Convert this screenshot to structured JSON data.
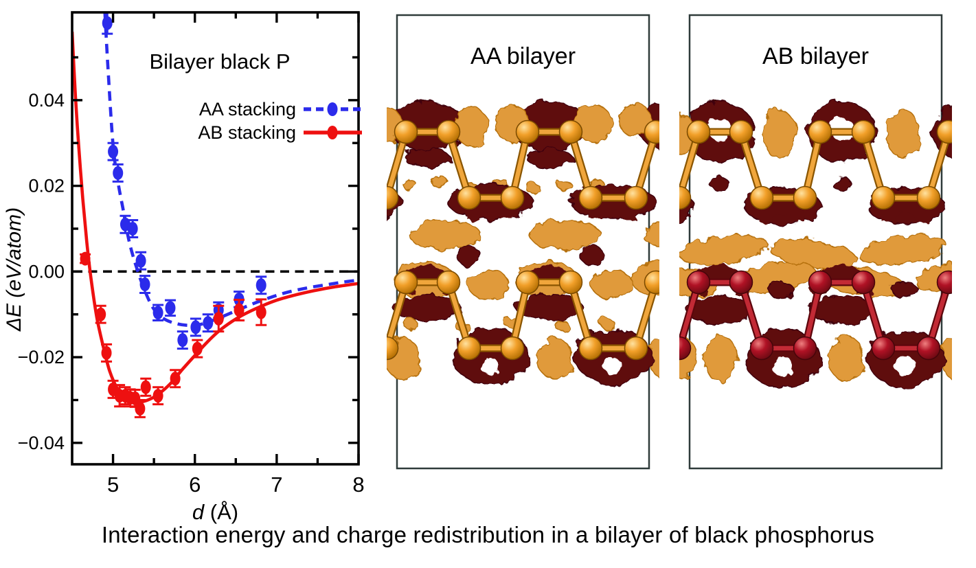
{
  "figure": {
    "caption": "Interaction energy and charge redistribution in a bilayer of black phosphorus"
  },
  "chart": {
    "title": "Bilayer black P",
    "x_axis": {
      "label_symbol": "d",
      "label_unit": " (Å)",
      "tick_labels": [
        "5",
        "6",
        "7",
        "8"
      ]
    },
    "y_axis": {
      "label_symbol": "ΔE",
      "label_unit": " (eV/atom)",
      "tick_labels": [
        "0.04",
        "0.02",
        "0.00",
        "−0.02",
        "−0.04"
      ]
    }
  },
  "chart_data": {
    "type": "scatter",
    "title": "Bilayer black P",
    "xlabel": "d (Å)",
    "ylabel": "ΔE (eV/atom)",
    "xlim": [
      4.5,
      8.0
    ],
    "ylim": [
      -0.045,
      0.0605
    ],
    "x_major_ticks": [
      5,
      6,
      7,
      8
    ],
    "x_minor_ticks": [
      5.5,
      6.5,
      7.5
    ],
    "y_major_ticks": [
      0.04,
      0.02,
      0.0,
      -0.02,
      -0.04
    ],
    "y_minor_ticks": [
      0.05,
      0.03,
      0.01,
      -0.01,
      -0.03
    ],
    "zero_line_y": 0.0,
    "grid": false,
    "legend_position": "upper-right-inside",
    "series": [
      {
        "name": "AA stacking",
        "color": "#2b2beb",
        "line_style": "dashed",
        "marker": "ellipse",
        "points": [
          {
            "x": 4.93,
            "y": 0.058,
            "err": 0.0025
          },
          {
            "x": 5.0,
            "y": 0.028,
            "err": 0.002
          },
          {
            "x": 5.06,
            "y": 0.023,
            "err": 0.002
          },
          {
            "x": 5.15,
            "y": 0.011,
            "err": 0.002
          },
          {
            "x": 5.24,
            "y": 0.01,
            "err": 0.002
          },
          {
            "x": 5.34,
            "y": 0.0025,
            "err": 0.002
          },
          {
            "x": 5.39,
            "y": -0.003,
            "err": 0.002
          },
          {
            "x": 5.55,
            "y": -0.0096,
            "err": 0.0018
          },
          {
            "x": 5.7,
            "y": -0.0085,
            "err": 0.0018
          },
          {
            "x": 5.85,
            "y": -0.016,
            "err": 0.002
          },
          {
            "x": 6.01,
            "y": -0.013,
            "err": 0.002
          },
          {
            "x": 6.16,
            "y": -0.012,
            "err": 0.002
          },
          {
            "x": 6.29,
            "y": -0.009,
            "err": 0.0018
          },
          {
            "x": 6.54,
            "y": -0.0065,
            "err": 0.0018
          },
          {
            "x": 6.81,
            "y": -0.0032,
            "err": 0.002
          }
        ],
        "fit_curve": [
          [
            4.9,
            0.0605
          ],
          [
            4.94,
            0.047
          ],
          [
            5.0,
            0.0295
          ],
          [
            5.06,
            0.021
          ],
          [
            5.12,
            0.0148
          ],
          [
            5.2,
            0.0068
          ],
          [
            5.3,
            0.0002
          ],
          [
            5.4,
            -0.005
          ],
          [
            5.5,
            -0.0088
          ],
          [
            5.62,
            -0.011
          ],
          [
            5.78,
            -0.0122
          ],
          [
            5.95,
            -0.0126
          ],
          [
            6.1,
            -0.0122
          ],
          [
            6.3,
            -0.0108
          ],
          [
            6.5,
            -0.0092
          ],
          [
            6.7,
            -0.0076
          ],
          [
            6.9,
            -0.0062
          ],
          [
            7.1,
            -0.005
          ],
          [
            7.35,
            -0.0039
          ],
          [
            7.6,
            -0.0031
          ],
          [
            7.8,
            -0.0025
          ],
          [
            8.0,
            -0.002
          ]
        ]
      },
      {
        "name": "AB stacking",
        "color": "#ee1010",
        "line_style": "solid",
        "marker": "ellipse",
        "points": [
          {
            "x": 4.66,
            "y": 0.003,
            "err": 0.001
          },
          {
            "x": 4.85,
            "y": -0.01,
            "err": 0.002
          },
          {
            "x": 4.92,
            "y": -0.019,
            "err": 0.002
          },
          {
            "x": 5.0,
            "y": -0.0275,
            "err": 0.002
          },
          {
            "x": 5.08,
            "y": -0.029,
            "err": 0.0025
          },
          {
            "x": 5.15,
            "y": -0.029,
            "err": 0.002
          },
          {
            "x": 5.21,
            "y": -0.0295,
            "err": 0.002
          },
          {
            "x": 5.27,
            "y": -0.0296,
            "err": 0.002
          },
          {
            "x": 5.33,
            "y": -0.032,
            "err": 0.002
          },
          {
            "x": 5.4,
            "y": -0.027,
            "err": 0.002
          },
          {
            "x": 5.55,
            "y": -0.029,
            "err": 0.002
          },
          {
            "x": 5.76,
            "y": -0.025,
            "err": 0.002
          },
          {
            "x": 6.03,
            "y": -0.018,
            "err": 0.002
          },
          {
            "x": 6.29,
            "y": -0.011,
            "err": 0.003
          },
          {
            "x": 6.54,
            "y": -0.009,
            "err": 0.0024
          },
          {
            "x": 6.81,
            "y": -0.0095,
            "err": 0.003
          }
        ],
        "fit_curve": [
          [
            4.5,
            0.056
          ],
          [
            4.54,
            0.041
          ],
          [
            4.58,
            0.0295
          ],
          [
            4.63,
            0.017
          ],
          [
            4.68,
            0.0068
          ],
          [
            4.73,
            -0.0015
          ],
          [
            4.8,
            -0.0105
          ],
          [
            4.88,
            -0.0175
          ],
          [
            4.96,
            -0.0233
          ],
          [
            5.05,
            -0.0272
          ],
          [
            5.15,
            -0.0293
          ],
          [
            5.25,
            -0.0302
          ],
          [
            5.35,
            -0.0304
          ],
          [
            5.45,
            -0.0298
          ],
          [
            5.55,
            -0.0287
          ],
          [
            5.7,
            -0.0262
          ],
          [
            5.85,
            -0.0228
          ],
          [
            6.0,
            -0.0196
          ],
          [
            6.15,
            -0.0165
          ],
          [
            6.3,
            -0.0138
          ],
          [
            6.45,
            -0.0117
          ],
          [
            6.6,
            -0.01
          ],
          [
            6.8,
            -0.0082
          ],
          [
            7.0,
            -0.0067
          ],
          [
            7.2,
            -0.0056
          ],
          [
            7.45,
            -0.0045
          ],
          [
            7.7,
            -0.0036
          ],
          [
            8.0,
            -0.0028
          ]
        ]
      }
    ]
  },
  "panels": [
    {
      "label": "AA bilayer",
      "upper_layer_style": "gold",
      "lower_layer_style": "gold",
      "blob_set": "AA"
    },
    {
      "label": "AB bilayer",
      "upper_layer_style": "gold",
      "lower_layer_style": "crimson",
      "blob_set": "AB"
    }
  ],
  "colors": {
    "aa_series": "#2b2beb",
    "ab_series": "#ee1010",
    "axis": "#000000",
    "gold_atom": "#f2a02a",
    "gold_bond_dark": "#8a5500",
    "gold_bond_light": "#f0a63c",
    "crimson_atom": "#b01225",
    "crimson_bond_dark": "#5c060c",
    "crimson_bond_light": "#c22a35",
    "maroon_blob": "#5e0a10",
    "orange_blob": "#e09a3a",
    "panel_border": "#2f3b3a"
  }
}
